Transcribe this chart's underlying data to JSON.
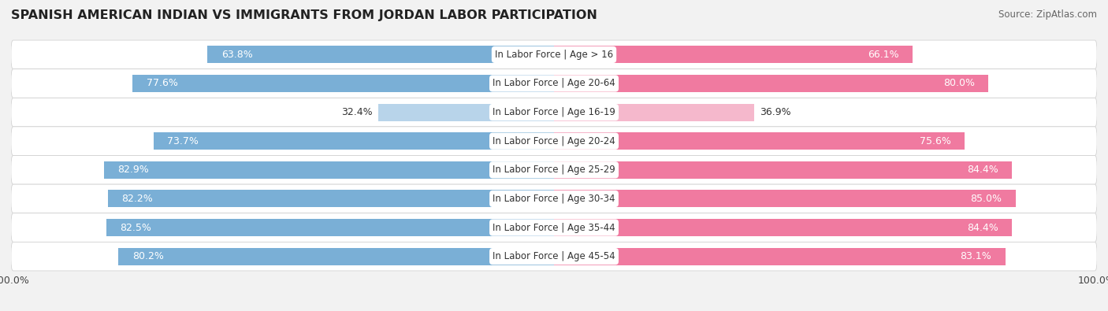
{
  "title": "SPANISH AMERICAN INDIAN VS IMMIGRANTS FROM JORDAN LABOR PARTICIPATION",
  "source": "Source: ZipAtlas.com",
  "categories": [
    "In Labor Force | Age > 16",
    "In Labor Force | Age 20-64",
    "In Labor Force | Age 16-19",
    "In Labor Force | Age 20-24",
    "In Labor Force | Age 25-29",
    "In Labor Force | Age 30-34",
    "In Labor Force | Age 35-44",
    "In Labor Force | Age 45-54"
  ],
  "spanish_values": [
    63.8,
    77.6,
    32.4,
    73.7,
    82.9,
    82.2,
    82.5,
    80.2
  ],
  "jordan_values": [
    66.1,
    80.0,
    36.9,
    75.6,
    84.4,
    85.0,
    84.4,
    83.1
  ],
  "spanish_color": "#7aafd6",
  "jordan_color": "#f07aa0",
  "spanish_color_light": "#b8d4ea",
  "jordan_color_light": "#f5b8cc",
  "bar_height": 0.6,
  "background_color": "#f2f2f2",
  "row_bg_light": "#f8f8f8",
  "row_bg_dark": "#e8e8e8",
  "legend_spanish": "Spanish American Indian",
  "legend_jordan": "Immigrants from Jordan",
  "x_max": 100.0,
  "title_fontsize": 11.5,
  "label_fontsize": 8.5,
  "value_fontsize": 9.0
}
